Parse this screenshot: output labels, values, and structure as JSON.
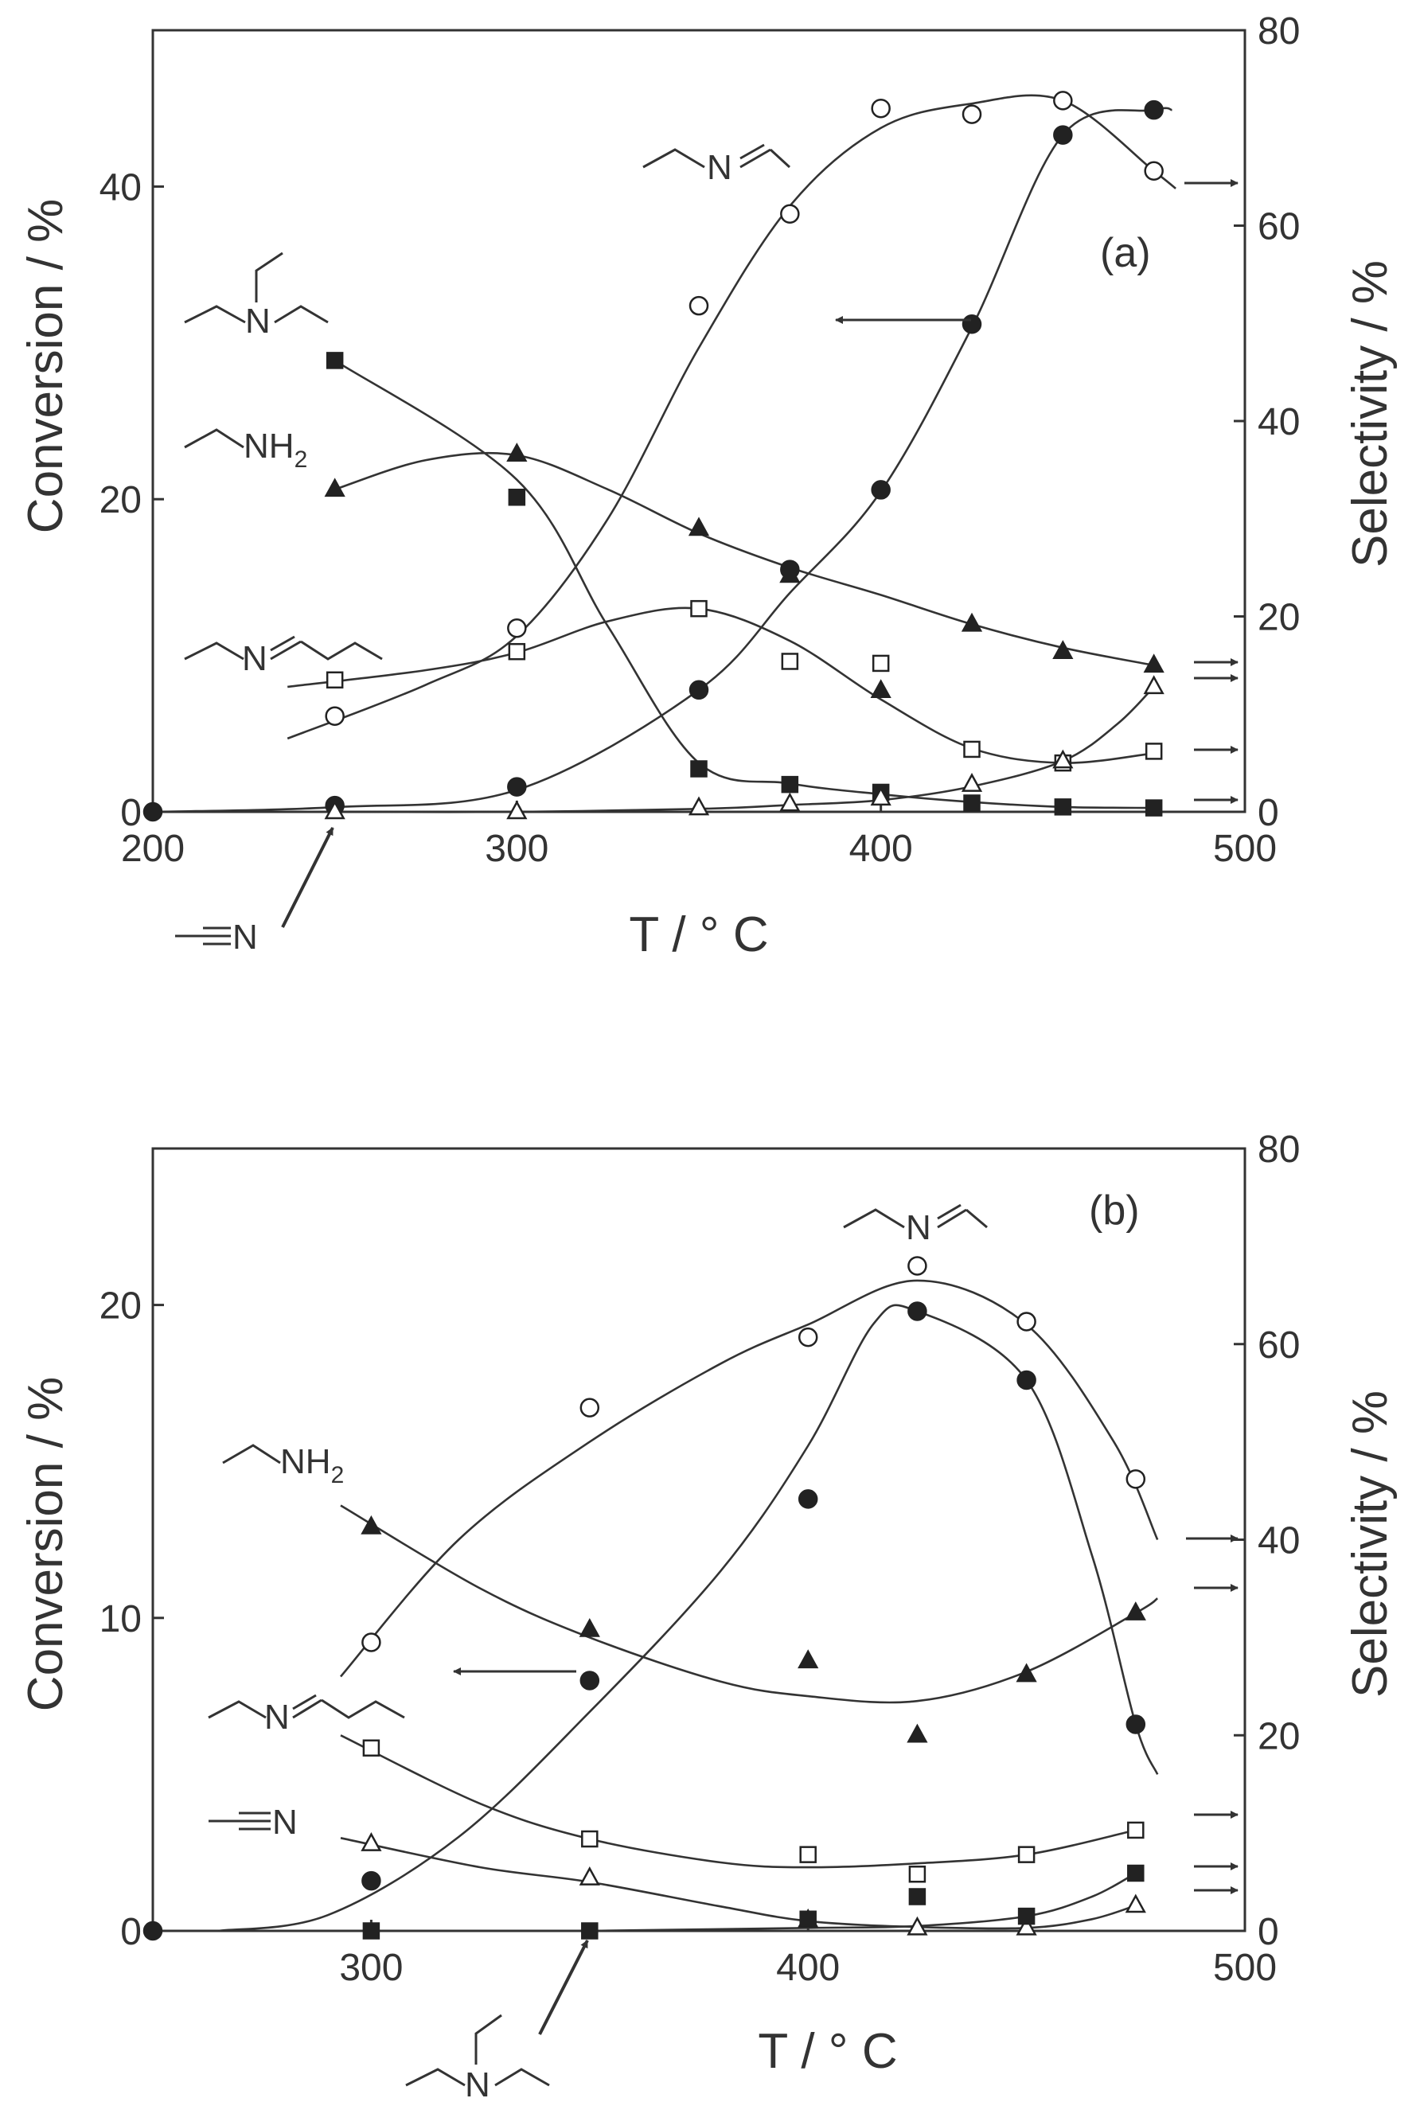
{
  "chart_data": [
    {
      "type": "scatter",
      "panel_label": "(a)",
      "xlabel": "T / ° C",
      "ylabel": "Conversion / %",
      "ylabel_right": "Selectivity / %",
      "xlim": [
        200,
        500
      ],
      "ylim": [
        0,
        50
      ],
      "ylim_right": [
        0,
        80
      ],
      "xticks": [
        200,
        300,
        400,
        500
      ],
      "yticks": [
        0,
        20,
        40
      ],
      "yticks_right": [
        0,
        20,
        40,
        60,
        80
      ],
      "series": [
        {
          "key": "conversion",
          "axis": "left",
          "marker": "filled-circle",
          "points": [
            [
              200,
              0
            ],
            [
              250,
              0.4
            ],
            [
              300,
              1.6
            ],
            [
              350,
              7.8
            ],
            [
              375,
              15.5
            ],
            [
              400,
              20.6
            ],
            [
              425,
              31.2
            ],
            [
              450,
              43.3
            ],
            [
              475,
              44.9
            ]
          ],
          "curve": [
            [
              200,
              0
            ],
            [
              250,
              0.3
            ],
            [
              300,
              1.4
            ],
            [
              350,
              7.8
            ],
            [
              375,
              14.0
            ],
            [
              400,
              20.5
            ],
            [
              425,
              31.0
            ],
            [
              450,
              43.3
            ],
            [
              475,
              44.9
            ],
            [
              480,
              44.9
            ]
          ]
        },
        {
          "key": "imine",
          "axis": "right",
          "marker": "open-circle",
          "points": [
            [
              250,
              9.8
            ],
            [
              300,
              18.8
            ],
            [
              350,
              51.8
            ],
            [
              375,
              61.2
            ],
            [
              400,
              72.0
            ],
            [
              425,
              71.4
            ],
            [
              450,
              72.8
            ],
            [
              475,
              65.6
            ]
          ],
          "curve": [
            [
              237,
              7.5
            ],
            [
              275,
              13.0
            ],
            [
              300,
              18.0
            ],
            [
              325,
              30.0
            ],
            [
              350,
              47.5
            ],
            [
              375,
              62.0
            ],
            [
              400,
              70.0
            ],
            [
              425,
              72.5
            ],
            [
              450,
              72.8
            ],
            [
              475,
              65.6
            ],
            [
              481,
              63.8
            ]
          ]
        },
        {
          "key": "triethylamine",
          "axis": "right",
          "marker": "filled-square",
          "points": [
            [
              250,
              46.2
            ],
            [
              300,
              32.2
            ],
            [
              350,
              4.4
            ],
            [
              375,
              2.8
            ],
            [
              400,
              2.0
            ],
            [
              425,
              0.9
            ],
            [
              450,
              0.5
            ],
            [
              475,
              0.4
            ]
          ],
          "curve": [
            [
              250,
              46.2
            ],
            [
              300,
              34.0
            ],
            [
              325,
              19.0
            ],
            [
              350,
              5.0
            ],
            [
              375,
              2.9
            ],
            [
              400,
              1.8
            ],
            [
              425,
              1.0
            ],
            [
              450,
              0.5
            ],
            [
              475,
              0.4
            ]
          ]
        },
        {
          "key": "ethylamine",
          "axis": "right",
          "marker": "filled-triangle",
          "points": [
            [
              250,
              33.0
            ],
            [
              300,
              36.6
            ],
            [
              350,
              29.0
            ],
            [
              375,
              24.2
            ],
            [
              400,
              12.4
            ],
            [
              425,
              19.2
            ],
            [
              450,
              16.4
            ],
            [
              475,
              15.0
            ]
          ],
          "curve": [
            [
              250,
              33.0
            ],
            [
              275,
              36.0
            ],
            [
              300,
              36.5
            ],
            [
              325,
              33.0
            ],
            [
              350,
              28.5
            ],
            [
              375,
              25.0
            ],
            [
              400,
              22.2
            ],
            [
              425,
              19.2
            ],
            [
              450,
              16.8
            ],
            [
              475,
              15.0
            ]
          ]
        },
        {
          "key": "diimine",
          "axis": "right",
          "marker": "open-square",
          "points": [
            [
              250,
              13.5
            ],
            [
              300,
              16.4
            ],
            [
              350,
              20.8
            ],
            [
              375,
              15.4
            ],
            [
              400,
              15.2
            ],
            [
              425,
              6.4
            ],
            [
              450,
              5.0
            ],
            [
              475,
              6.2
            ]
          ],
          "curve": [
            [
              237,
              12.8
            ],
            [
              275,
              14.5
            ],
            [
              300,
              16.3
            ],
            [
              325,
              19.5
            ],
            [
              350,
              20.8
            ],
            [
              375,
              17.5
            ],
            [
              400,
              11.5
            ],
            [
              425,
              6.5
            ],
            [
              450,
              5.0
            ],
            [
              475,
              6.0
            ]
          ]
        },
        {
          "key": "acetonitrile",
          "axis": "right",
          "marker": "open-triangle",
          "points": [
            [
              250,
              0
            ],
            [
              300,
              0
            ],
            [
              350,
              0.4
            ],
            [
              375,
              0.8
            ],
            [
              400,
              1.4
            ],
            [
              425,
              2.8
            ],
            [
              450,
              5.2
            ],
            [
              475,
              12.8
            ]
          ],
          "curve": [
            [
              250,
              0
            ],
            [
              300,
              0
            ],
            [
              350,
              0.3
            ],
            [
              375,
              0.7
            ],
            [
              400,
              1.2
            ],
            [
              425,
              2.6
            ],
            [
              450,
              5.2
            ],
            [
              465,
              9.0
            ],
            [
              475,
              12.8
            ]
          ]
        }
      ],
      "annotations": [
        {
          "molecule": "imine",
          "text": "N"
        },
        {
          "molecule": "triethylamine",
          "text": "N"
        },
        {
          "molecule": "ethylamine",
          "text": "NH",
          "sub": "2"
        },
        {
          "molecule": "diimine",
          "text": "N"
        },
        {
          "molecule": "acetonitrile",
          "text": "N"
        }
      ]
    },
    {
      "type": "scatter",
      "panel_label": "(b)",
      "xlabel": "T / ° C",
      "ylabel": "Conversion / %",
      "ylabel_right": "Selectivity / %",
      "xlim": [
        250,
        500
      ],
      "ylim": [
        0,
        25
      ],
      "ylim_right": [
        0,
        80
      ],
      "xticks": [
        300,
        400,
        500
      ],
      "yticks": [
        0,
        10,
        20
      ],
      "yticks_right": [
        0,
        20,
        40,
        60,
        80
      ],
      "series": [
        {
          "key": "conversion",
          "axis": "left",
          "marker": "filled-circle",
          "points": [
            [
              250,
              0
            ],
            [
              300,
              1.6
            ],
            [
              350,
              8.0
            ],
            [
              400,
              13.8
            ],
            [
              425,
              19.8
            ],
            [
              450,
              17.6
            ],
            [
              475,
              6.6
            ]
          ],
          "curve": [
            [
              265,
              0
            ],
            [
              290,
              0.5
            ],
            [
              320,
              3.0
            ],
            [
              350,
              7.0
            ],
            [
              380,
              11.5
            ],
            [
              400,
              15.5
            ],
            [
              415,
              19.4
            ],
            [
              425,
              19.8
            ],
            [
              450,
              17.6
            ],
            [
              465,
              12.0
            ],
            [
              475,
              6.6
            ],
            [
              480,
              5.0
            ]
          ]
        },
        {
          "key": "imine",
          "axis": "right",
          "marker": "open-circle",
          "points": [
            [
              300,
              29.5
            ],
            [
              350,
              53.5
            ],
            [
              400,
              60.7
            ],
            [
              425,
              68.0
            ],
            [
              450,
              62.3
            ],
            [
              475,
              46.2
            ]
          ],
          "curve": [
            [
              293,
              26.0
            ],
            [
              320,
              40.0
            ],
            [
              350,
              50.0
            ],
            [
              380,
              58.0
            ],
            [
              400,
              62.0
            ],
            [
              425,
              66.5
            ],
            [
              450,
              62.0
            ],
            [
              470,
              50.0
            ],
            [
              480,
              40.0
            ]
          ]
        },
        {
          "key": "ethylamine",
          "axis": "right",
          "marker": "filled-triangle",
          "points": [
            [
              300,
              41.3
            ],
            [
              350,
              30.8
            ],
            [
              400,
              27.6
            ],
            [
              425,
              20.0
            ],
            [
              450,
              26.2
            ],
            [
              475,
              32.5
            ]
          ],
          "curve": [
            [
              293,
              43.5
            ],
            [
              325,
              35.0
            ],
            [
              350,
              30.0
            ],
            [
              380,
              25.5
            ],
            [
              400,
              24.0
            ],
            [
              425,
              23.5
            ],
            [
              450,
              26.5
            ],
            [
              475,
              32.5
            ],
            [
              480,
              34.0
            ]
          ]
        },
        {
          "key": "diimine",
          "axis": "right",
          "marker": "open-square",
          "points": [
            [
              300,
              18.7
            ],
            [
              350,
              9.4
            ],
            [
              400,
              7.8
            ],
            [
              425,
              5.8
            ],
            [
              450,
              7.8
            ],
            [
              475,
              10.3
            ]
          ],
          "curve": [
            [
              293,
              20.0
            ],
            [
              325,
              13.0
            ],
            [
              350,
              9.4
            ],
            [
              380,
              7.0
            ],
            [
              400,
              6.5
            ],
            [
              425,
              6.9
            ],
            [
              450,
              7.8
            ],
            [
              475,
              10.3
            ]
          ]
        },
        {
          "key": "acetonitrile",
          "axis": "right",
          "marker": "open-triangle",
          "points": [
            [
              300,
              8.9
            ],
            [
              350,
              5.4
            ],
            [
              400,
              1.1
            ],
            [
              425,
              0.3
            ],
            [
              450,
              0.3
            ],
            [
              475,
              2.6
            ]
          ],
          "curve": [
            [
              293,
              9.5
            ],
            [
              325,
              6.5
            ],
            [
              350,
              5.0
            ],
            [
              380,
              2.5
            ],
            [
              400,
              1.0
            ],
            [
              425,
              0.4
            ],
            [
              450,
              0.3
            ],
            [
              465,
              1.2
            ],
            [
              475,
              2.6
            ]
          ]
        },
        {
          "key": "triethylamine",
          "axis": "right",
          "marker": "filled-square",
          "points": [
            [
              300,
              0
            ],
            [
              350,
              0
            ],
            [
              400,
              1.2
            ],
            [
              425,
              3.5
            ],
            [
              450,
              1.5
            ],
            [
              475,
              5.9
            ]
          ],
          "curve": [
            [
              350,
              0
            ],
            [
              400,
              0.3
            ],
            [
              425,
              0.5
            ],
            [
              450,
              1.5
            ],
            [
              465,
              3.5
            ],
            [
              475,
              5.9
            ]
          ]
        }
      ],
      "annotations": [
        {
          "molecule": "imine",
          "text": "N"
        },
        {
          "molecule": "ethylamine",
          "text": "NH",
          "sub": "2"
        },
        {
          "molecule": "diimine",
          "text": "N"
        },
        {
          "molecule": "acetonitrile",
          "text": "N"
        },
        {
          "molecule": "triethylamine",
          "text": "N"
        }
      ]
    }
  ]
}
